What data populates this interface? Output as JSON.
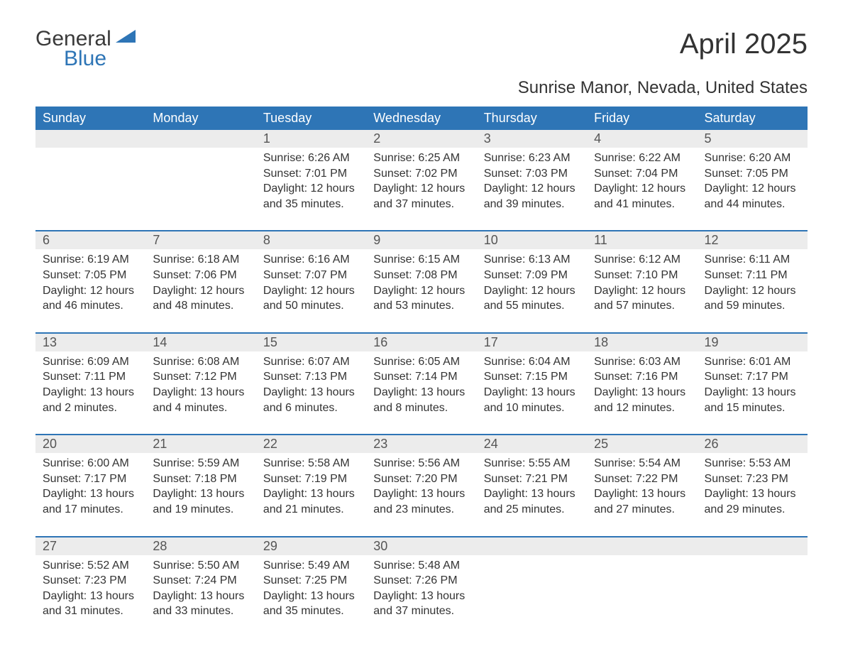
{
  "logo": {
    "word1": "General",
    "word2": "Blue"
  },
  "title": "April 2025",
  "location": "Sunrise Manor, Nevada, United States",
  "colors": {
    "header_bg": "#2e75b6",
    "header_text": "#ffffff",
    "daynum_bg": "#ececec",
    "row_divider": "#2e75b6",
    "body_text": "#333333"
  },
  "day_headers": [
    "Sunday",
    "Monday",
    "Tuesday",
    "Wednesday",
    "Thursday",
    "Friday",
    "Saturday"
  ],
  "weeks": [
    [
      null,
      null,
      {
        "n": "1",
        "sunrise": "6:26 AM",
        "sunset": "7:01 PM",
        "daylight": "12 hours and 35 minutes."
      },
      {
        "n": "2",
        "sunrise": "6:25 AM",
        "sunset": "7:02 PM",
        "daylight": "12 hours and 37 minutes."
      },
      {
        "n": "3",
        "sunrise": "6:23 AM",
        "sunset": "7:03 PM",
        "daylight": "12 hours and 39 minutes."
      },
      {
        "n": "4",
        "sunrise": "6:22 AM",
        "sunset": "7:04 PM",
        "daylight": "12 hours and 41 minutes."
      },
      {
        "n": "5",
        "sunrise": "6:20 AM",
        "sunset": "7:05 PM",
        "daylight": "12 hours and 44 minutes."
      }
    ],
    [
      {
        "n": "6",
        "sunrise": "6:19 AM",
        "sunset": "7:05 PM",
        "daylight": "12 hours and 46 minutes."
      },
      {
        "n": "7",
        "sunrise": "6:18 AM",
        "sunset": "7:06 PM",
        "daylight": "12 hours and 48 minutes."
      },
      {
        "n": "8",
        "sunrise": "6:16 AM",
        "sunset": "7:07 PM",
        "daylight": "12 hours and 50 minutes."
      },
      {
        "n": "9",
        "sunrise": "6:15 AM",
        "sunset": "7:08 PM",
        "daylight": "12 hours and 53 minutes."
      },
      {
        "n": "10",
        "sunrise": "6:13 AM",
        "sunset": "7:09 PM",
        "daylight": "12 hours and 55 minutes."
      },
      {
        "n": "11",
        "sunrise": "6:12 AM",
        "sunset": "7:10 PM",
        "daylight": "12 hours and 57 minutes."
      },
      {
        "n": "12",
        "sunrise": "6:11 AM",
        "sunset": "7:11 PM",
        "daylight": "12 hours and 59 minutes."
      }
    ],
    [
      {
        "n": "13",
        "sunrise": "6:09 AM",
        "sunset": "7:11 PM",
        "daylight": "13 hours and 2 minutes."
      },
      {
        "n": "14",
        "sunrise": "6:08 AM",
        "sunset": "7:12 PM",
        "daylight": "13 hours and 4 minutes."
      },
      {
        "n": "15",
        "sunrise": "6:07 AM",
        "sunset": "7:13 PM",
        "daylight": "13 hours and 6 minutes."
      },
      {
        "n": "16",
        "sunrise": "6:05 AM",
        "sunset": "7:14 PM",
        "daylight": "13 hours and 8 minutes."
      },
      {
        "n": "17",
        "sunrise": "6:04 AM",
        "sunset": "7:15 PM",
        "daylight": "13 hours and 10 minutes."
      },
      {
        "n": "18",
        "sunrise": "6:03 AM",
        "sunset": "7:16 PM",
        "daylight": "13 hours and 12 minutes."
      },
      {
        "n": "19",
        "sunrise": "6:01 AM",
        "sunset": "7:17 PM",
        "daylight": "13 hours and 15 minutes."
      }
    ],
    [
      {
        "n": "20",
        "sunrise": "6:00 AM",
        "sunset": "7:17 PM",
        "daylight": "13 hours and 17 minutes."
      },
      {
        "n": "21",
        "sunrise": "5:59 AM",
        "sunset": "7:18 PM",
        "daylight": "13 hours and 19 minutes."
      },
      {
        "n": "22",
        "sunrise": "5:58 AM",
        "sunset": "7:19 PM",
        "daylight": "13 hours and 21 minutes."
      },
      {
        "n": "23",
        "sunrise": "5:56 AM",
        "sunset": "7:20 PM",
        "daylight": "13 hours and 23 minutes."
      },
      {
        "n": "24",
        "sunrise": "5:55 AM",
        "sunset": "7:21 PM",
        "daylight": "13 hours and 25 minutes."
      },
      {
        "n": "25",
        "sunrise": "5:54 AM",
        "sunset": "7:22 PM",
        "daylight": "13 hours and 27 minutes."
      },
      {
        "n": "26",
        "sunrise": "5:53 AM",
        "sunset": "7:23 PM",
        "daylight": "13 hours and 29 minutes."
      }
    ],
    [
      {
        "n": "27",
        "sunrise": "5:52 AM",
        "sunset": "7:23 PM",
        "daylight": "13 hours and 31 minutes."
      },
      {
        "n": "28",
        "sunrise": "5:50 AM",
        "sunset": "7:24 PM",
        "daylight": "13 hours and 33 minutes."
      },
      {
        "n": "29",
        "sunrise": "5:49 AM",
        "sunset": "7:25 PM",
        "daylight": "13 hours and 35 minutes."
      },
      {
        "n": "30",
        "sunrise": "5:48 AM",
        "sunset": "7:26 PM",
        "daylight": "13 hours and 37 minutes."
      },
      null,
      null,
      null
    ]
  ],
  "labels": {
    "sunrise_prefix": "Sunrise: ",
    "sunset_prefix": "Sunset: ",
    "daylight_prefix": "Daylight: "
  }
}
